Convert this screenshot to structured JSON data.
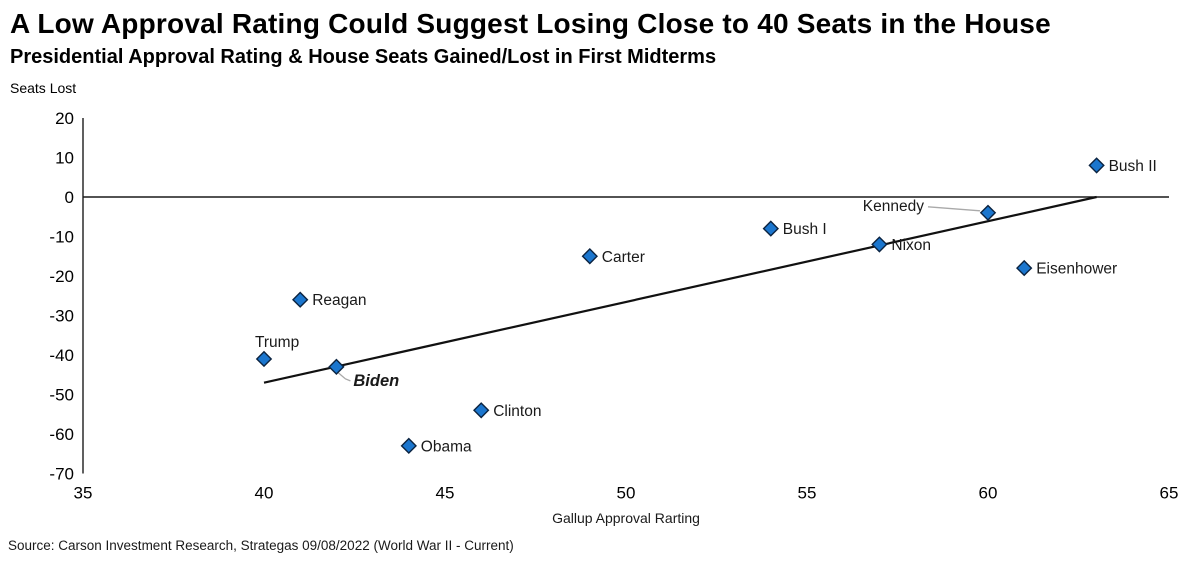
{
  "page": {
    "title": "A Low Approval Rating Could Suggest Losing Close to 40 Seats in the House",
    "subtitle": "Presidential Approval Rating & House Seats Gained/Lost in First Midterms",
    "source": "Source: Carson Investment Research, Strategas 09/08/2022 (World War II - Current)"
  },
  "chart_data": {
    "type": "scatter",
    "title": "A Low Approval Rating Could Suggest Losing Close to 40 Seats in the House",
    "subtitle": "Presidential Approval Rating & House Seats Gained/Lost in First Midterms",
    "ylabel": "Seats Lost",
    "xlabel": "Gallup Approval Rarting",
    "xlim": [
      35,
      65
    ],
    "ylim": [
      -70,
      20
    ],
    "x_ticks": [
      35,
      40,
      45,
      50,
      55,
      60,
      65
    ],
    "y_ticks": [
      20,
      10,
      0,
      -10,
      -20,
      -30,
      -40,
      -50,
      -60,
      -70
    ],
    "grid": false,
    "zero_line_y": 0,
    "legend": "none",
    "marker": {
      "shape": "diamond",
      "fill": "#1B76CE",
      "stroke": "#0B2340"
    },
    "colors": {
      "trend_line": "#111111",
      "axis": "#2b2b2b",
      "leader": "#a9a9a9",
      "text": "#1a1a1a"
    },
    "trend_line": {
      "x1": 40,
      "y1": -47,
      "x2": 63,
      "y2": 0
    },
    "points": [
      {
        "name": "Trump",
        "x": 40,
        "y": -41,
        "label_side": "above"
      },
      {
        "name": "Biden",
        "x": 42,
        "y": -43,
        "label_side": "leader-below-right",
        "emphasis": true
      },
      {
        "name": "Reagan",
        "x": 41,
        "y": -26,
        "label_side": "right"
      },
      {
        "name": "Obama",
        "x": 44,
        "y": -63,
        "label_side": "right"
      },
      {
        "name": "Clinton",
        "x": 46,
        "y": -54,
        "label_side": "right"
      },
      {
        "name": "Carter",
        "x": 49,
        "y": -15,
        "label_side": "right"
      },
      {
        "name": "Bush I",
        "x": 54,
        "y": -8,
        "label_side": "right"
      },
      {
        "name": "Nixon",
        "x": 57,
        "y": -12,
        "label_side": "right"
      },
      {
        "name": "Kennedy",
        "x": 60,
        "y": -4,
        "label_side": "leader-left"
      },
      {
        "name": "Eisenhower",
        "x": 61,
        "y": -18,
        "label_side": "right"
      },
      {
        "name": "Bush II",
        "x": 63,
        "y": 8,
        "label_side": "right"
      }
    ],
    "source": "Source: Carson Investment Research, Strategas 09/08/2022 (World War II - Current)"
  }
}
